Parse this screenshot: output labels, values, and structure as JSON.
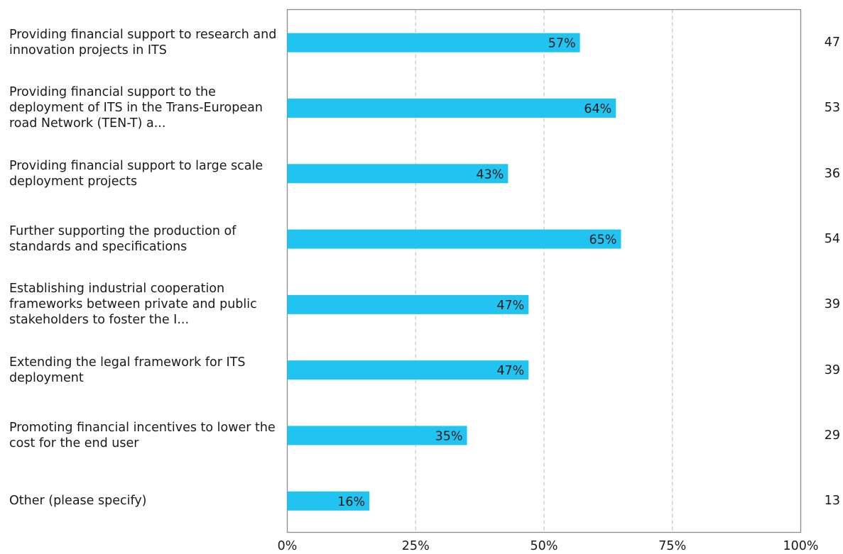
{
  "colors": {
    "bar": "#21c4f0",
    "grid": "#c8c8c8",
    "axis": "#8c8c8c",
    "text": "#1a1a1a"
  },
  "chart_data": {
    "type": "bar",
    "orientation": "horizontal",
    "categories": [
      "Providing financial support to research and innovation projects in ITS",
      "Providing financial support to the deployment of ITS in the Trans-European road Network (TEN-T) a...",
      "Providing financial support to large scale deployment projects",
      "Further supporting the production of standards and specifications",
      "Establishing industrial cooperation frameworks between private and public stakeholders to foster the I...",
      "Extending the legal framework for ITS deployment",
      "Promoting financial incentives to lower the cost for the end user",
      "Other (please specify)"
    ],
    "values": [
      57,
      64,
      43,
      65,
      47,
      47,
      35,
      16
    ],
    "value_labels": [
      "57%",
      "64%",
      "43%",
      "65%",
      "47%",
      "47%",
      "35%",
      "16%"
    ],
    "counts": [
      "47",
      "53",
      "36",
      "54",
      "39",
      "39",
      "29",
      "13"
    ],
    "xlim": [
      0,
      100
    ],
    "xticks": [
      "0%",
      "25%",
      "50%",
      "75%",
      "100%"
    ],
    "grid": true
  }
}
